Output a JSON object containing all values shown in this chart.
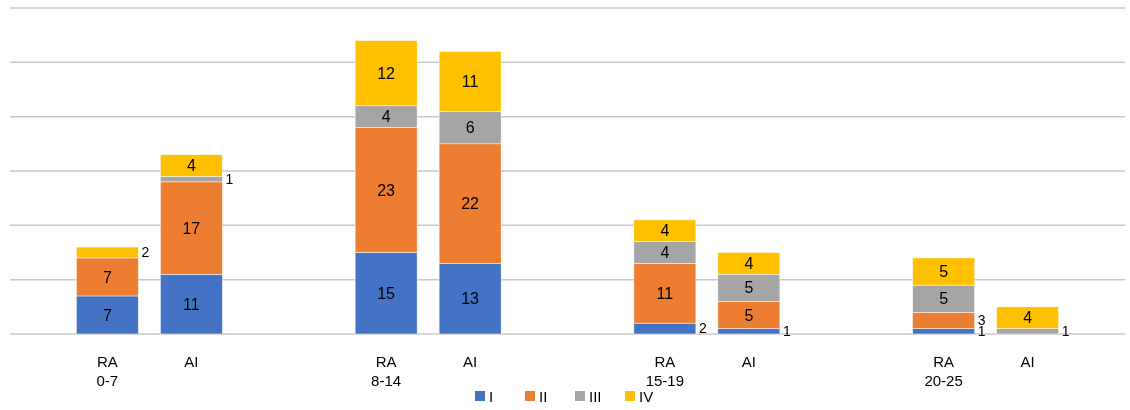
{
  "chart_data": {
    "type": "bar",
    "stacked": true,
    "categories": [
      "RA",
      "AI",
      "RA",
      "AI",
      "RA",
      "AI",
      "RA",
      "AI"
    ],
    "annotations": [
      "0-7",
      "8-14",
      "15-19",
      "20-25"
    ],
    "series": [
      {
        "name": "I",
        "color": "#4472c4",
        "values": [
          7,
          11,
          15,
          13,
          2,
          1,
          1,
          null
        ]
      },
      {
        "name": "II",
        "color": "#ed7d31",
        "values": [
          7,
          17,
          23,
          22,
          11,
          5,
          3,
          null
        ]
      },
      {
        "name": "III",
        "color": "#a5a5a5",
        "values": [
          null,
          1,
          4,
          6,
          4,
          5,
          5,
          1
        ]
      },
      {
        "name": "IV",
        "color": "#ffc000",
        "values": [
          2,
          4,
          12,
          11,
          4,
          4,
          5,
          4
        ]
      }
    ],
    "ylim": [
      0,
      60
    ],
    "yticks": [
      {
        "value": 0,
        "label": null
      },
      {
        "value": 10,
        "label": null
      },
      {
        "value": 20,
        "label": null
      },
      {
        "value": 30,
        "label": null
      },
      {
        "value": 40,
        "label": null
      },
      {
        "value": 50,
        "label": null
      },
      {
        "value": 60,
        "label": null
      }
    ],
    "tick_labels": "x",
    "grid": "y",
    "data_labels": true,
    "legend": "bottom"
  }
}
